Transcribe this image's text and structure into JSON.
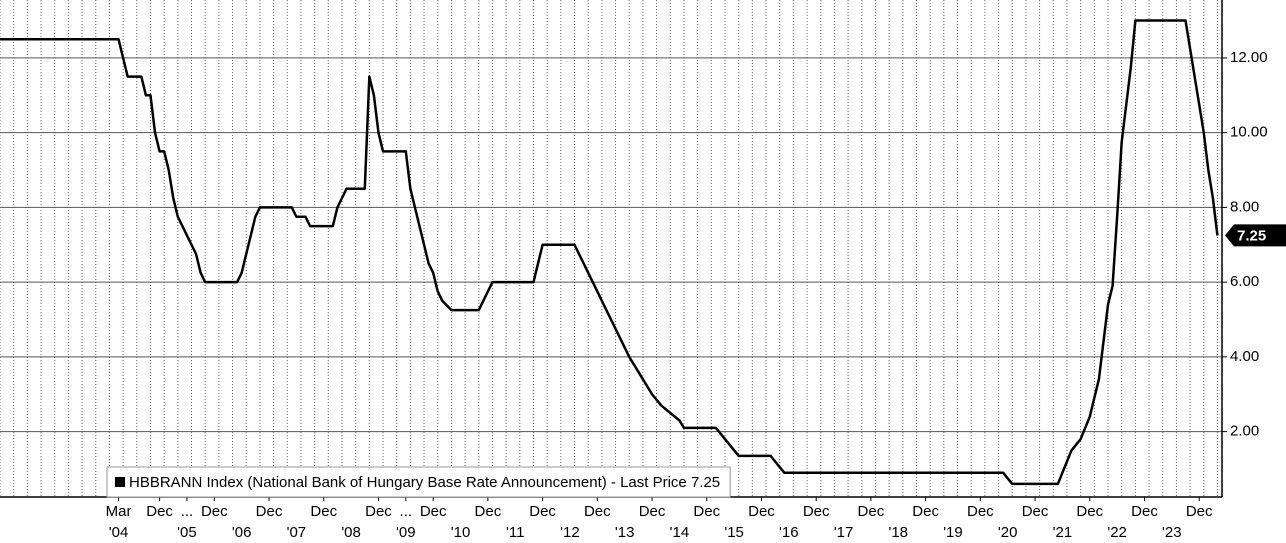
{
  "chart_data": {
    "type": "line",
    "series": [
      {
        "name": "HBBRANN Index (National Bank of Hungary Base Rate Announcement) - Last Price 7.25",
        "color": "#000000",
        "x": [
          "2002-01",
          "2004-03",
          "2004-04",
          "2004-05",
          "2004-08",
          "2004-09",
          "2004-10",
          "2004-11",
          "2004-12",
          "2005-01",
          "2005-02",
          "2005-03",
          "2005-04",
          "2005-05",
          "2005-06",
          "2005-07",
          "2005-08",
          "2005-09",
          "2005-10",
          "2006-05",
          "2006-06",
          "2006-07",
          "2006-08",
          "2006-09",
          "2006-10",
          "2007-05",
          "2007-06",
          "2007-08",
          "2007-09",
          "2008-02",
          "2008-03",
          "2008-04",
          "2008-05",
          "2008-09",
          "2008-10",
          "2008-11",
          "2008-12",
          "2009-01",
          "2009-06",
          "2009-07",
          "2009-08",
          "2009-09",
          "2009-10",
          "2009-11",
          "2009-12",
          "2010-01",
          "2010-02",
          "2010-04",
          "2010-10",
          "2010-11",
          "2010-12",
          "2011-01",
          "2011-10",
          "2011-11",
          "2011-12",
          "2012-07",
          "2012-08",
          "2012-09",
          "2012-10",
          "2012-11",
          "2012-12",
          "2013-01",
          "2013-02",
          "2013-03",
          "2013-04",
          "2013-05",
          "2013-06",
          "2013-07",
          "2013-08",
          "2013-09",
          "2013-10",
          "2013-11",
          "2013-12",
          "2014-01",
          "2014-02",
          "2014-03",
          "2014-04",
          "2014-05",
          "2014-06",
          "2014-07",
          "2015-02",
          "2015-03",
          "2015-04",
          "2015-05",
          "2015-06",
          "2015-07",
          "2016-02",
          "2016-03",
          "2016-04",
          "2016-05",
          "2020-05",
          "2020-06",
          "2020-07",
          "2021-05",
          "2021-06",
          "2021-07",
          "2021-08",
          "2021-09",
          "2021-10",
          "2021-11",
          "2021-12",
          "2022-01",
          "2022-02",
          "2022-03",
          "2022-04",
          "2022-05",
          "2022-06",
          "2022-07",
          "2022-08",
          "2022-09",
          "2022-10",
          "2023-09",
          "2023-10",
          "2023-11",
          "2023-12",
          "2024-01",
          "2024-02",
          "2024-03",
          "2024-04"
        ],
        "values": [
          12.5,
          12.5,
          12.0,
          11.5,
          11.5,
          11.0,
          11.0,
          10.0,
          9.5,
          9.5,
          9.0,
          8.25,
          7.75,
          7.5,
          7.25,
          7.0,
          6.75,
          6.25,
          6.0,
          6.0,
          6.25,
          6.75,
          7.25,
          7.75,
          8.0,
          8.0,
          7.75,
          7.75,
          7.5,
          7.5,
          8.0,
          8.25,
          8.5,
          8.5,
          11.5,
          11.0,
          10.0,
          9.5,
          9.5,
          8.5,
          8.0,
          7.5,
          7.0,
          6.5,
          6.25,
          5.75,
          5.5,
          5.25,
          5.25,
          5.5,
          5.75,
          6.0,
          6.0,
          6.5,
          7.0,
          7.0,
          6.75,
          6.5,
          6.25,
          6.0,
          5.75,
          5.5,
          5.25,
          5.0,
          4.75,
          4.5,
          4.25,
          4.0,
          3.8,
          3.6,
          3.4,
          3.2,
          3.0,
          2.85,
          2.7,
          2.6,
          2.5,
          2.4,
          2.3,
          2.1,
          2.1,
          1.95,
          1.8,
          1.65,
          1.5,
          1.35,
          1.35,
          1.2,
          1.05,
          0.9,
          0.9,
          0.75,
          0.6,
          0.6,
          0.9,
          1.2,
          1.5,
          1.65,
          1.8,
          2.1,
          2.4,
          2.9,
          3.4,
          4.4,
          5.4,
          5.9,
          7.75,
          9.75,
          10.75,
          11.75,
          13.0,
          13.0,
          12.25,
          11.5,
          10.75,
          10.0,
          9.0,
          8.25,
          7.25
        ]
      }
    ],
    "last_price_label": "7.25",
    "xlim": [
      "2002-01",
      "2024-05"
    ],
    "ylim": [
      0.25,
      13.55
    ],
    "yticks": [
      {
        "value": 2,
        "label": "2.00"
      },
      {
        "value": 4,
        "label": "4.00"
      },
      {
        "value": 6,
        "label": "6.00"
      },
      {
        "value": 8,
        "label": "8.00"
      },
      {
        "value": 10,
        "label": "10.00"
      },
      {
        "value": 12,
        "label": "12.00"
      }
    ],
    "xticks": [
      {
        "value": "2004-03",
        "label": "Mar"
      },
      {
        "value": "2004-12",
        "label": "Dec"
      },
      {
        "value": "2005-06",
        "label": "..."
      },
      {
        "value": "2005-12",
        "label": "Dec"
      },
      {
        "value": "2006-12",
        "label": "Dec"
      },
      {
        "value": "2007-12",
        "label": "Dec"
      },
      {
        "value": "2008-12",
        "label": "Dec"
      },
      {
        "value": "2009-06",
        "label": "..."
      },
      {
        "value": "2009-12",
        "label": "Dec"
      },
      {
        "value": "2010-12",
        "label": "Dec"
      },
      {
        "value": "2011-12",
        "label": "Dec"
      },
      {
        "value": "2012-12",
        "label": "Dec"
      },
      {
        "value": "2013-12",
        "label": "Dec"
      },
      {
        "value": "2014-12",
        "label": "Dec"
      },
      {
        "value": "2015-12",
        "label": "Dec"
      },
      {
        "value": "2016-12",
        "label": "Dec"
      },
      {
        "value": "2017-12",
        "label": "Dec"
      },
      {
        "value": "2018-12",
        "label": "Dec"
      },
      {
        "value": "2019-12",
        "label": "Dec"
      },
      {
        "value": "2020-12",
        "label": "Dec"
      },
      {
        "value": "2021-12",
        "label": "Dec"
      },
      {
        "value": "2022-12",
        "label": "Dec"
      },
      {
        "value": "2023-12",
        "label": "Dec"
      }
    ],
    "xticks_years": [
      {
        "value": "2004-03",
        "label": "'04"
      },
      {
        "value": "2005-06",
        "label": "'05"
      },
      {
        "value": "2006-06",
        "label": "'06"
      },
      {
        "value": "2007-06",
        "label": "'07"
      },
      {
        "value": "2008-06",
        "label": "'08"
      },
      {
        "value": "2009-06",
        "label": "'09"
      },
      {
        "value": "2010-06",
        "label": "'10"
      },
      {
        "value": "2011-06",
        "label": "'11"
      },
      {
        "value": "2012-06",
        "label": "'12"
      },
      {
        "value": "2013-06",
        "label": "'13"
      },
      {
        "value": "2014-06",
        "label": "'14"
      },
      {
        "value": "2015-06",
        "label": "'15"
      },
      {
        "value": "2016-06",
        "label": "'16"
      },
      {
        "value": "2017-06",
        "label": "'17"
      },
      {
        "value": "2018-06",
        "label": "'18"
      },
      {
        "value": "2019-06",
        "label": "'19"
      },
      {
        "value": "2020-06",
        "label": "'20"
      },
      {
        "value": "2021-06",
        "label": "'21"
      },
      {
        "value": "2022-06",
        "label": "'22"
      },
      {
        "value": "2023-06",
        "label": "'23"
      }
    ],
    "grid": true
  }
}
